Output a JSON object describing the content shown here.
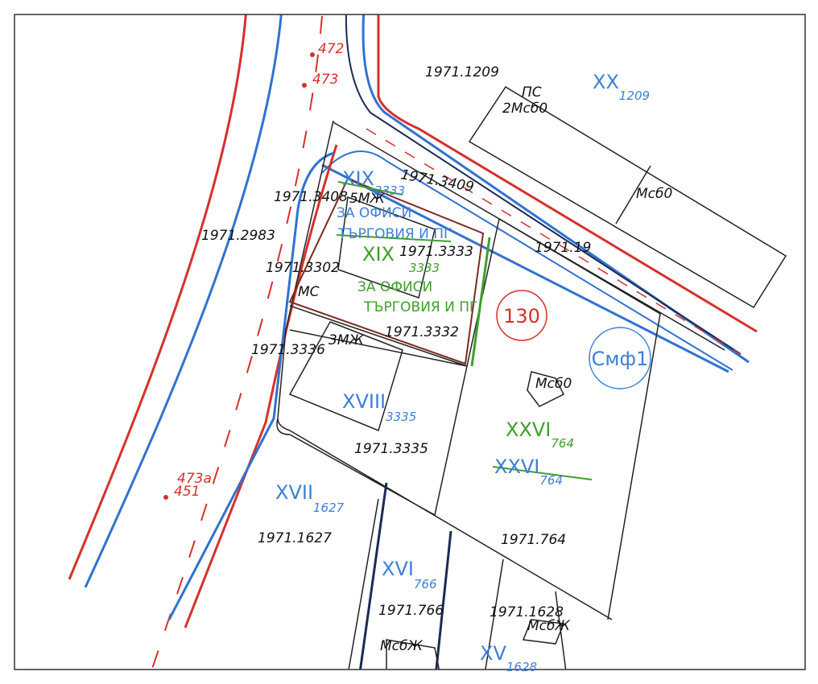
{
  "survey_points": [
    "472",
    "473",
    "473a",
    "451"
  ],
  "block_number": "130",
  "parcels": [
    "1971.1209",
    "1971.3409",
    "1971.3408",
    "1971.2983",
    "1971.3333",
    "1971.19",
    "1971.3302",
    "1971.3332",
    "1971.3336",
    "1971.3335",
    "1971.1627",
    "1971.764",
    "1971.766",
    "1971.1628"
  ],
  "buildings": [
    "ПС",
    "2Мсб0",
    "Мсб0",
    "5МЖ",
    "МС",
    "3МЖ",
    "Мсб0",
    "МсбЖ",
    "МсбЖ"
  ],
  "zone": "Смф1",
  "regulated_plots_old": [
    {
      "numeral": "XX",
      "number": "1209"
    },
    {
      "numeral": "XIX",
      "number": "3333"
    },
    {
      "numeral": "XVIII",
      "number": "3335"
    },
    {
      "numeral": "XVII",
      "number": "1627"
    },
    {
      "numeral": "XVI",
      "number": "766"
    },
    {
      "numeral": "XV",
      "number": "1628"
    },
    {
      "numeral": "XXVI",
      "number": "764"
    }
  ],
  "old_purpose": [
    "ЗА ОФИСИ",
    "ТЪРГОВИЯ И ПГ"
  ],
  "regulated_plots_new": [
    {
      "numeral": "XIX",
      "number": "3333"
    },
    {
      "numeral": "XXVI",
      "number": "764"
    }
  ],
  "new_purpose": [
    "ЗА ОФИСИ",
    "ТЪРГОВИЯ И ПГ"
  ]
}
